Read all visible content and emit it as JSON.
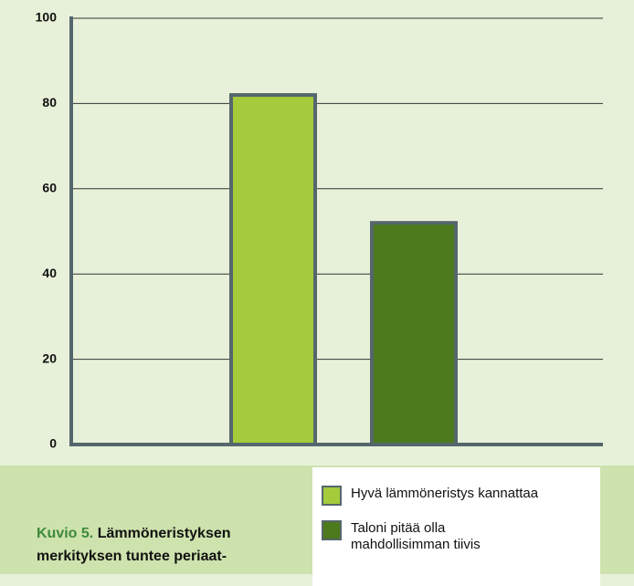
{
  "chart_data": {
    "type": "bar",
    "categories": [
      null
    ],
    "series": [
      {
        "name": "Hyvä lämmöneristys kannattaa",
        "color": "#a4cb3b",
        "values": [
          82
        ]
      },
      {
        "name": "Taloni pitää olla mahdollisimman tiivis",
        "color": "#4d7a1c",
        "values": [
          52
        ]
      }
    ],
    "ylim": [
      0,
      100
    ],
    "yticks": [
      0,
      20,
      40,
      60,
      80,
      100
    ],
    "grid": true,
    "legend": "bottom-right",
    "caption_label": "Kuvio 5.",
    "caption_lines": [
      "Lämmöneristyksen",
      "merkityksen tuntee periaat-"
    ]
  }
}
